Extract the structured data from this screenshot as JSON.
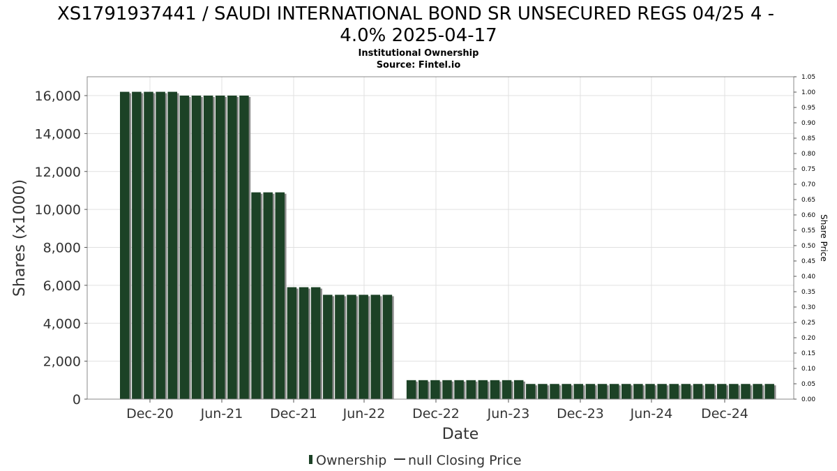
{
  "header": {
    "title_line1": "XS1791937441 / SAUDI INTERNATIONAL BOND SR UNSECURED REGS 04/25 4 -",
    "title_line2": "4.0% 2025-04-17",
    "subtitle": "Institutional Ownership",
    "source": "Source: Fintel.io"
  },
  "colors": {
    "bar": "#1c4226",
    "bar_shadow": "#8a8a8a",
    "grid": "#e0e0e0",
    "axis": "#888888"
  },
  "chart_data": {
    "type": "bar",
    "xlabel": "Date",
    "ylabel": "Shares (x1000)",
    "y2label": "Share Price",
    "ylim": [
      0,
      17000
    ],
    "y2lim": [
      0,
      1.05
    ],
    "yticks": [
      0,
      2000,
      4000,
      6000,
      8000,
      10000,
      12000,
      14000,
      16000
    ],
    "ytick_labels": [
      "0",
      "2,000",
      "4,000",
      "6,000",
      "8,000",
      "10,000",
      "12,000",
      "14,000",
      "16,000"
    ],
    "y2ticks": [
      "0.00",
      "0.05",
      "0.10",
      "0.15",
      "0.20",
      "0.25",
      "0.30",
      "0.35",
      "0.40",
      "0.45",
      "0.50",
      "0.55",
      "0.60",
      "0.65",
      "0.70",
      "0.75",
      "0.80",
      "0.85",
      "0.90",
      "0.95",
      "1.00",
      "1.05"
    ],
    "xticks": [
      "Dec-20",
      "Jun-21",
      "Dec-21",
      "Jun-22",
      "Dec-22",
      "Jun-23",
      "Dec-23",
      "Jun-24",
      "Dec-24"
    ],
    "grid": true,
    "legend_position": "bottom",
    "legend": [
      "Ownership",
      "null Closing Price"
    ],
    "series": [
      {
        "name": "Ownership",
        "values": [
          16200,
          16200,
          16200,
          16200,
          16200,
          16000,
          16000,
          16000,
          16000,
          16000,
          16000,
          10900,
          10900,
          10900,
          5900,
          5900,
          5900,
          5500,
          5500,
          5500,
          5500,
          5500,
          5500,
          null,
          1000,
          1000,
          1000,
          1000,
          1000,
          1000,
          1000,
          1000,
          1000,
          1000,
          800,
          800,
          800,
          800,
          800,
          800,
          800,
          800,
          800,
          800,
          800,
          800,
          800,
          800,
          800,
          800,
          800,
          800,
          800,
          800,
          800
        ]
      }
    ]
  }
}
